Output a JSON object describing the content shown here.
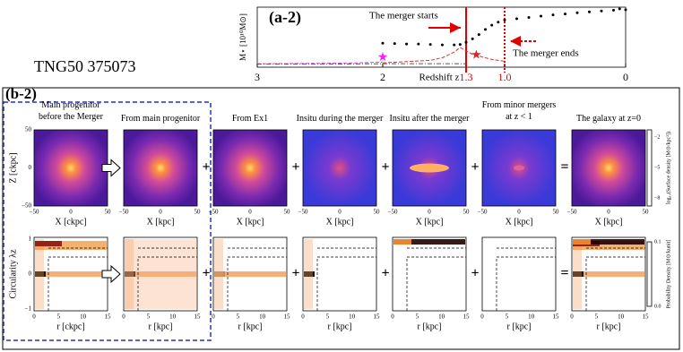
{
  "chart_data": {
    "type": "scatter",
    "label": "(a-2)",
    "ylabel": "M⋆ [10¹⁰M⊙]",
    "xlabel": "Redshift z",
    "xlim": [
      3,
      0
    ],
    "xticks": [
      3,
      2,
      {
        "value": 1.3,
        "label": "1.3"
      },
      {
        "value": 1,
        "label": "1.0"
      },
      0
    ],
    "ylim": [
      0,
      14
    ],
    "annotations": [
      "The merger starts",
      "The merger ends"
    ],
    "series": [
      {
        "color": "#000000",
        "style": "dots",
        "x": [
          2.0,
          1.9,
          1.8,
          1.7,
          1.6,
          1.5,
          1.4,
          1.35,
          1.3,
          1.25,
          1.2,
          1.15,
          1.1,
          1.05,
          1.0,
          0.9,
          0.8,
          0.7,
          0.6,
          0.5,
          0.4,
          0.3,
          0.2,
          0.1,
          0.05,
          0
        ],
        "values": [
          5.6,
          5.5,
          5.4,
          5.4,
          5.3,
          5.2,
          5.2,
          5.3,
          5.8,
          6.6,
          7.6,
          8.8,
          9.8,
          10.5,
          11.0,
          11.3,
          11.6,
          11.9,
          12.2,
          12.4,
          12.7,
          12.9,
          13.1,
          13.3,
          13.6,
          13.4
        ]
      },
      {
        "color": "#e040e0",
        "style": "dash",
        "x": [
          3,
          2.5,
          2.2,
          2.0
        ],
        "values": [
          0.8,
          0.9,
          1.0,
          1.2
        ]
      },
      {
        "color": "#e03030",
        "style": "dash",
        "x": [
          2.0,
          1.8,
          1.6,
          1.5,
          1.4,
          1.35,
          1.3,
          1.25,
          1.2,
          1.1,
          1.0
        ],
        "values": [
          1.0,
          1.3,
          1.6,
          2.2,
          3.5,
          4.6,
          3.8,
          3.0,
          2.6,
          1.8,
          1.4
        ]
      },
      {
        "color": "#555555",
        "style": "dashdot",
        "x": [
          3,
          2.5,
          2.0,
          1.5,
          1.3
        ],
        "values": [
          0.7,
          0.7,
          0.8,
          0.8,
          0.8
        ]
      },
      {
        "color": "#ff20ff",
        "style": "star",
        "x": [
          2.0
        ],
        "values": [
          2.1
        ]
      },
      {
        "color": "#e02020",
        "style": "star",
        "x": [
          1.22
        ],
        "values": [
          2.7
        ]
      }
    ]
  },
  "galaxy_id": "TNG50 375073",
  "panel_b": {
    "label": "(b-2)",
    "columns": [
      "Main progenitor\nbefore the Merger",
      "From main progenitor",
      "From Ex1",
      "Insitu during the merger",
      "Insitu after the merger",
      "From minor mergers\nat z < 1",
      "The galaxy at z=0"
    ],
    "operators": [
      "+",
      "+",
      "+",
      "+",
      "="
    ],
    "image_ylabel": "Z [ckpc]",
    "image_xlabels": [
      "X [ckpc]",
      "X [kpc]"
    ],
    "image_ticks": [
      "50",
      "0",
      "−50"
    ],
    "image_xticks": [
      "−50",
      "0",
      "50"
    ],
    "circ_ylabel": "Circularity λz",
    "circ_xlabels": [
      "r [ckpc]",
      "r [kpc]"
    ],
    "circ_yticks": [
      "1",
      "0",
      "−1"
    ],
    "circ_xticks": [
      "0",
      "5",
      "10",
      "15"
    ],
    "colorbar1": {
      "label": "log₁₀(Surface density [M⊙/kpc²])",
      "ticks": [
        "−2",
        "−5",
        "−8"
      ]
    },
    "colorbar2": {
      "label": "Probability Density [M⊙/kunit]",
      "ticks": [
        "0.1",
        "0.0"
      ]
    }
  }
}
